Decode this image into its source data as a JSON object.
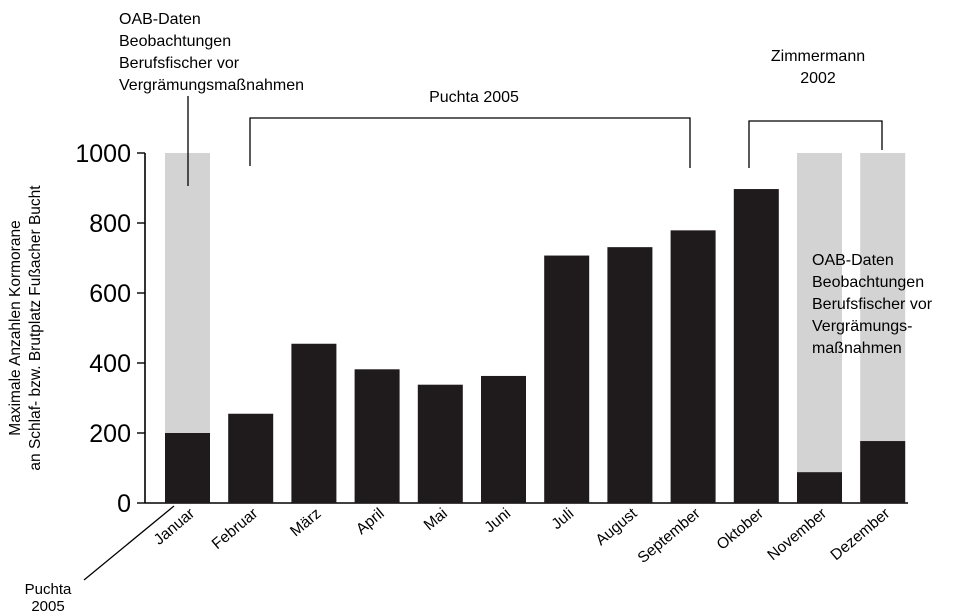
{
  "chart_data": {
    "type": "bar",
    "ylabel": [
      "Maximale Anzahlen Kormorane",
      "an Schlaf- bzw. Brutplatz Fußacher Bucht"
    ],
    "ylim": [
      0,
      1000
    ],
    "yticks": [
      0,
      200,
      400,
      600,
      800,
      1000
    ],
    "categories": [
      "Januar",
      "Februar",
      "März",
      "April",
      "Mai",
      "Juni",
      "Juli",
      "August",
      "September",
      "Oktober",
      "November",
      "Dezember"
    ],
    "series": [
      {
        "values": [
          200,
          255,
          455,
          382,
          338,
          363,
          707,
          731,
          779,
          897,
          88,
          177
        ]
      },
      {
        "values": [
          1000,
          null,
          null,
          null,
          null,
          null,
          null,
          null,
          null,
          null,
          1000,
          1000
        ]
      }
    ],
    "colors": {
      "main": "#1f1a1b",
      "oab": "#d3d3d3"
    },
    "annotations": {
      "oab_left": [
        "OAB-Daten",
        "Beobachtungen",
        "Berufsfischer vor",
        "Vergrämungsmaßnahmen"
      ],
      "puchta_top": "Puchta 2005",
      "zimmermann": [
        "Zimmermann",
        "2002"
      ],
      "oab_right": [
        "OAB-Daten",
        "Beobachtungen",
        "Berufsfischer vor",
        "Vergrämungs-",
        "maßnahmen"
      ],
      "puchta_bottom": [
        "Puchta",
        "2005"
      ]
    }
  }
}
